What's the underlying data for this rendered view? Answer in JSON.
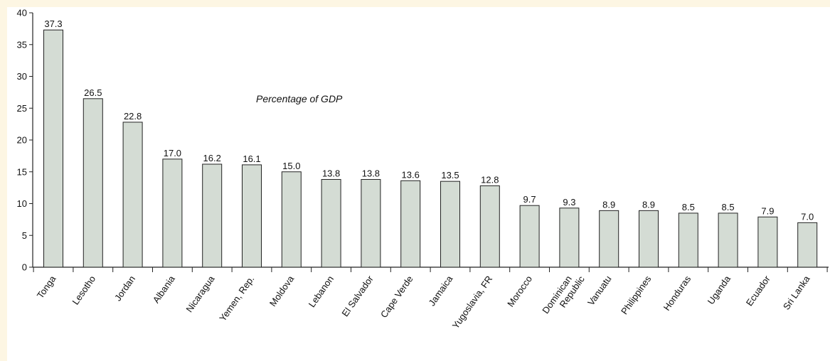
{
  "colors": {
    "page_background": "#fdf6e3",
    "plot_background": "#ffffff",
    "bar_fill": "#d4dcd4",
    "bar_stroke": "#222222",
    "axis": "#222222"
  },
  "chart_data": {
    "type": "bar",
    "title": "Percentage of GDP",
    "xlabel": "",
    "ylabel": "",
    "ylim": [
      0,
      40
    ],
    "yticks": [
      0,
      5,
      10,
      15,
      20,
      25,
      30,
      35,
      40
    ],
    "grid": false,
    "categories": [
      "Tonga",
      "Lesotho",
      "Jordan",
      "Albania",
      "Nicaragua",
      "Yemen, Rep.",
      "Moldova",
      "Lebanon",
      "El Salvador",
      "Cape Verde",
      "Jamaica",
      "Yugoslavia, FR",
      "Morocco",
      "Dominican Republic",
      "Vanuatu",
      "Philippines",
      "Honduras",
      "Uganda",
      "Ecuador",
      "Sri Lanka"
    ],
    "values": [
      37.3,
      26.5,
      22.8,
      17.0,
      16.2,
      16.1,
      15.0,
      13.8,
      13.8,
      13.6,
      13.5,
      12.8,
      9.7,
      9.3,
      8.9,
      8.9,
      8.5,
      8.5,
      7.9,
      7.0
    ],
    "value_labels": [
      "37.3",
      "26.5",
      "22.8",
      "17.0",
      "16.2",
      "16.1",
      "15.0",
      "13.8",
      "13.8",
      "13.6",
      "13.5",
      "12.8",
      "9.7",
      "9.3",
      "8.9",
      "8.9",
      "8.5",
      "8.5",
      "7.9",
      "7.0"
    ]
  }
}
